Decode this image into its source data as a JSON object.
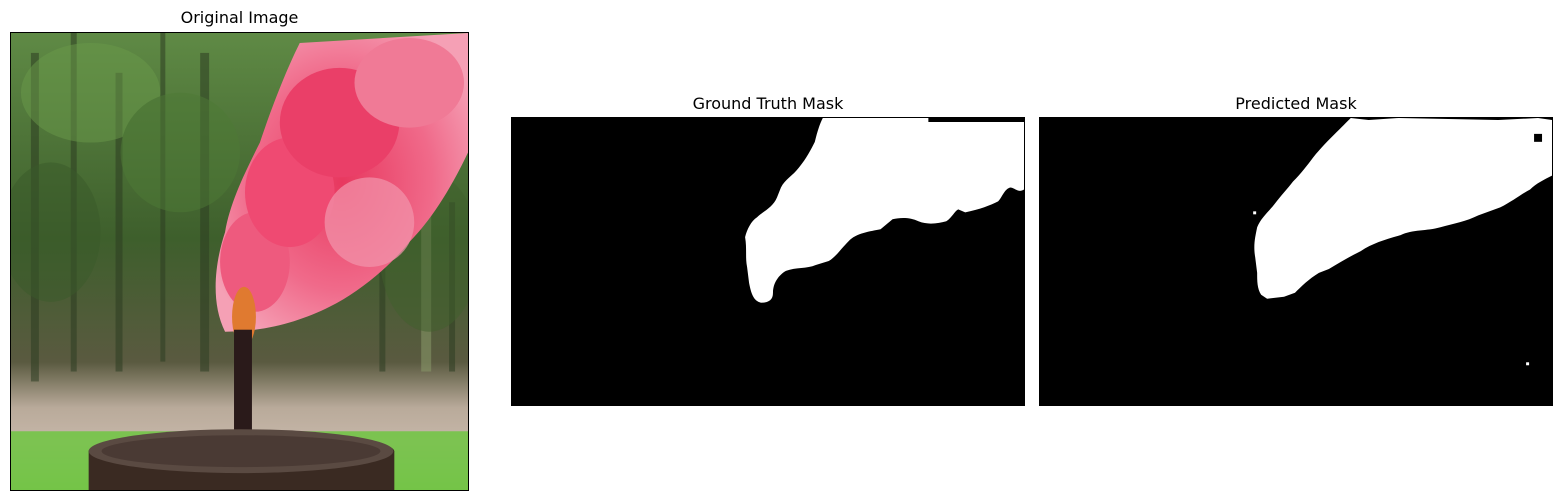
{
  "panels": [
    {
      "title": "Original Image"
    },
    {
      "title": "Ground Truth Mask"
    },
    {
      "title": "Predicted Mask"
    }
  ],
  "colors": {
    "mask_background": "#000000",
    "mask_foreground": "#ffffff",
    "smoke": "#e8476a",
    "flame": "#e07a30",
    "foliage": "#3f6b2e",
    "grass": "#6fbf3a",
    "barrel": "#3a2a22"
  }
}
